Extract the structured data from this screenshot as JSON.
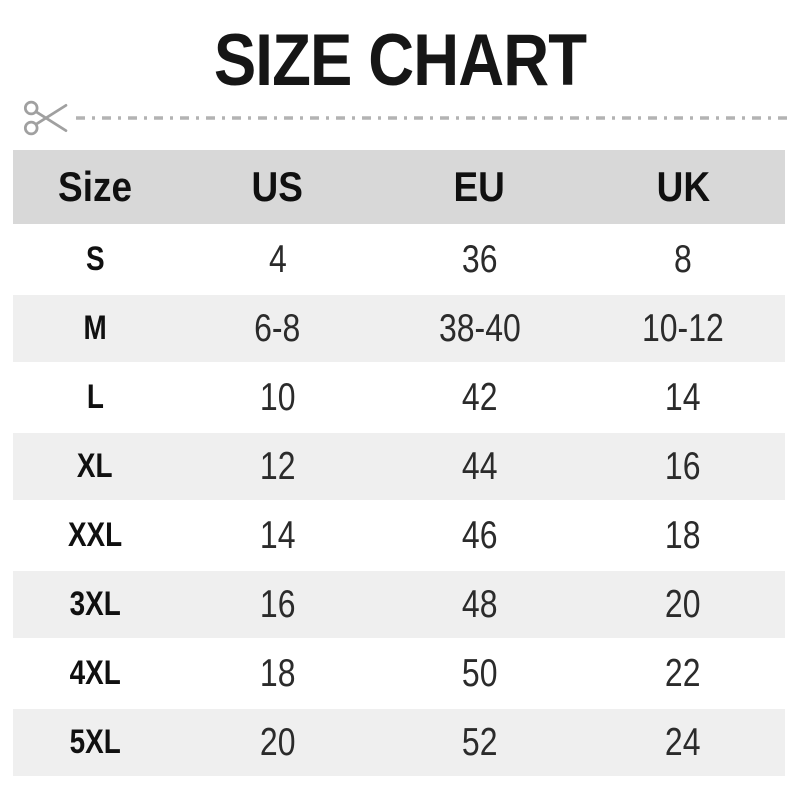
{
  "title": "SIZE CHART",
  "chart_data": {
    "type": "table",
    "title": "SIZE CHART",
    "columns": [
      "Size",
      "US",
      "EU",
      "UK"
    ],
    "rows": [
      {
        "size": "S",
        "us": "4",
        "eu": "36",
        "uk": "8"
      },
      {
        "size": "M",
        "us": "6-8",
        "eu": "38-40",
        "uk": "10-12"
      },
      {
        "size": "L",
        "us": "10",
        "eu": "42",
        "uk": "14"
      },
      {
        "size": "XL",
        "us": "12",
        "eu": "44",
        "uk": "16"
      },
      {
        "size": "XXL",
        "us": "14",
        "eu": "46",
        "uk": "18"
      },
      {
        "size": "3XL",
        "us": "16",
        "eu": "48",
        "uk": "20"
      },
      {
        "size": "4XL",
        "us": "18",
        "eu": "50",
        "uk": "22"
      },
      {
        "size": "5XL",
        "us": "20",
        "eu": "52",
        "uk": "24"
      }
    ],
    "layout_hints": {
      "header_row_shaded": true,
      "zebra_striping": "even rows shaded",
      "cut_line_above_table": true
    }
  },
  "icons": {
    "cut_line_icon": "scissors-icon"
  },
  "colors": {
    "header_bg": "#d8d8d8",
    "stripe_bg": "#efefef",
    "title_text": "#161616",
    "label_text": "#101010",
    "number_text": "#2b2b2b",
    "line_gray": "#b3b3b3",
    "scissors_gray": "#a0a0a0"
  }
}
